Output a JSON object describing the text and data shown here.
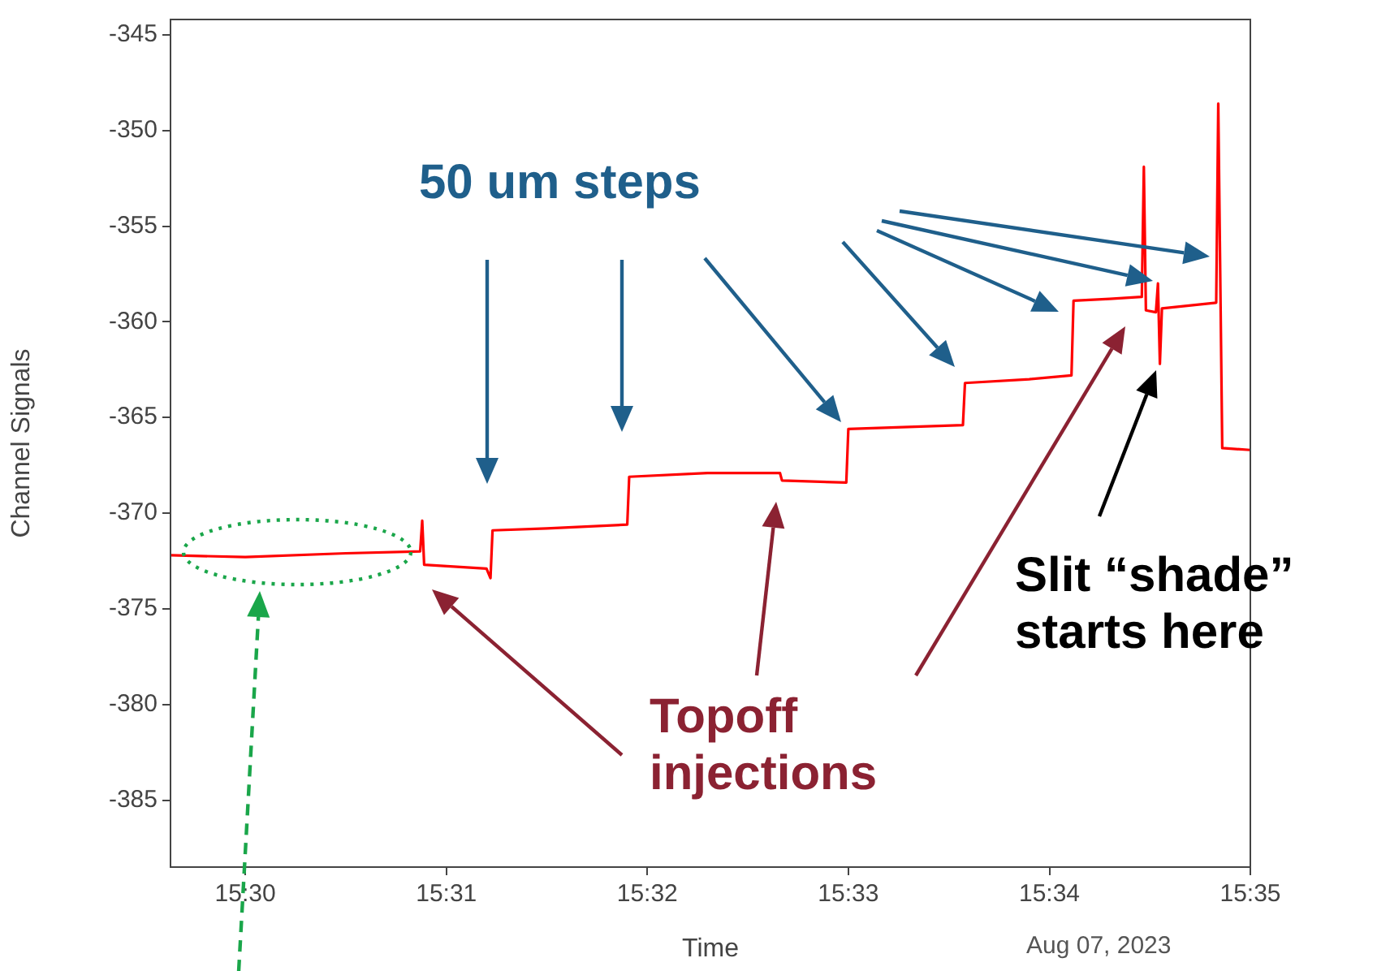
{
  "chart_data": {
    "type": "line",
    "xlabel": "Time",
    "ylabel": "Channel Signals",
    "annotations": [
      "50 um steps",
      "Topoff injections",
      "Slit “shade” starts here",
      "Aug 07, 2023"
    ],
    "xlim": [
      15.4938,
      15.58333
    ],
    "ylim": [
      -388.5,
      -344.2
    ],
    "xticks": [
      {
        "value": 15.5,
        "label": "15:30"
      },
      {
        "value": 15.51667,
        "label": "15:31"
      },
      {
        "value": 15.53333,
        "label": "15:32"
      },
      {
        "value": 15.55,
        "label": "15:33"
      },
      {
        "value": 15.56667,
        "label": "15:34"
      },
      {
        "value": 15.58333,
        "label": "15:35"
      }
    ],
    "yticks": [
      -385,
      -380,
      -375,
      -370,
      -365,
      -360,
      -355,
      -350,
      -345
    ],
    "grid": false,
    "legend": false,
    "marker": "none",
    "line_style": "solid",
    "series": [
      {
        "color": "#ff0000",
        "x": [
          15.49383,
          15.5,
          15.50833,
          15.5145,
          15.51467,
          15.51483,
          15.52,
          15.52033,
          15.5205,
          15.525,
          15.53167,
          15.53183,
          15.53833,
          15.54433,
          15.5445,
          15.54983,
          15.55,
          15.555,
          15.5595,
          15.55967,
          15.565,
          15.5685,
          15.56867,
          15.57167,
          15.57433,
          15.5745,
          15.57467,
          15.5755,
          15.57567,
          15.57583,
          15.576,
          15.5805,
          15.58067,
          15.581,
          15.58333
        ],
        "values": [
          -372.2,
          -372.3,
          -372.1,
          -372.0,
          -370.4,
          -372.7,
          -372.9,
          -373.4,
          -370.9,
          -370.8,
          -370.6,
          -368.1,
          -367.9,
          -367.9,
          -368.3,
          -368.4,
          -365.6,
          -365.5,
          -365.4,
          -363.2,
          -363.0,
          -362.8,
          -358.9,
          -358.8,
          -358.7,
          -351.9,
          -359.4,
          -359.5,
          -358.0,
          -362.2,
          -359.3,
          -359.0,
          -348.6,
          -366.6,
          -366.7
        ]
      }
    ]
  }
}
